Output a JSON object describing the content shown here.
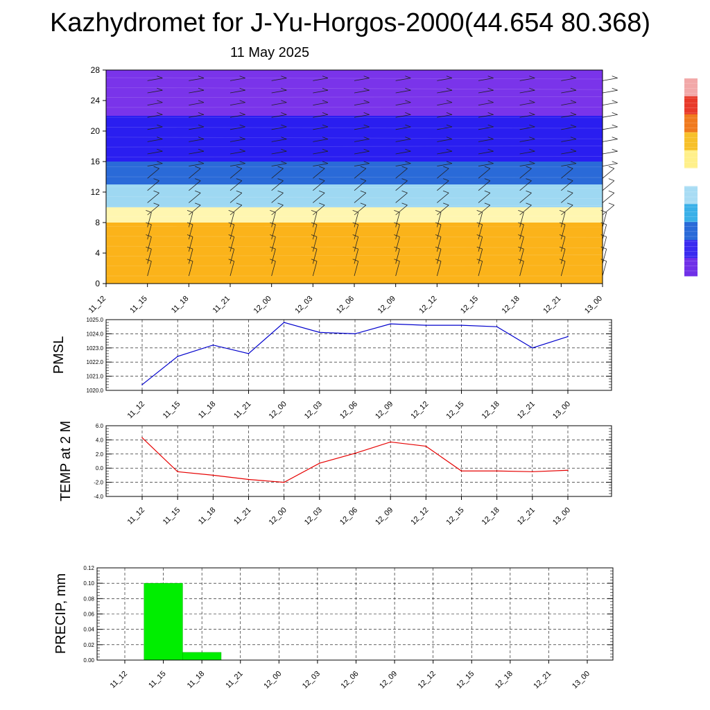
{
  "title": "Kazhydromet for J-Yu-Horgos-2000(44.654 80.368)",
  "subtitle": "11 May 2025",
  "time_labels": [
    "11_12",
    "11_15",
    "11_18",
    "11_21",
    "12_00",
    "12_03",
    "12_06",
    "12_09",
    "12_12",
    "12_15",
    "12_18",
    "12_21",
    "13_00"
  ],
  "colorbar": {
    "colors": [
      "#f2a8a8",
      "#e83a2a",
      "#f07a1e",
      "#f7c02a",
      "#fff08a",
      "#ffffff",
      "#a8dcf4",
      "#3ab0e8",
      "#2a6ad8",
      "#3a2af0",
      "#7030e8"
    ]
  },
  "chart_data": [
    {
      "type": "heatmap",
      "title": "",
      "ylim": [
        0,
        28
      ],
      "yticks": [
        0,
        4,
        8,
        12,
        16,
        20,
        24,
        28
      ],
      "categories": [
        "11_12",
        "11_15",
        "11_18",
        "11_21",
        "12_00",
        "12_03",
        "12_06",
        "12_09",
        "12_12",
        "12_15",
        "12_18",
        "12_21",
        "13_00"
      ],
      "bands": [
        {
          "from": 0,
          "to": 8,
          "color": "#fbb31a"
        },
        {
          "from": 8,
          "to": 10,
          "color": "#fff6b0"
        },
        {
          "from": 10,
          "to": 13,
          "color": "#9ed8f2"
        },
        {
          "from": 13,
          "to": 16,
          "color": "#2a6ad8"
        },
        {
          "from": 16,
          "to": 22,
          "color": "#2a1ef0"
        },
        {
          "from": 22,
          "to": 28,
          "color": "#7a34ea"
        }
      ],
      "note_wind_barbs": true
    },
    {
      "type": "line",
      "ylabel": "PMSL",
      "ylim": [
        1020.0,
        1025.0
      ],
      "yticks": [
        "1020.0",
        "1021.0",
        "1022.0",
        "1023.0",
        "1024.0",
        "1025.0"
      ],
      "categories": [
        "11_12",
        "11_15",
        "11_18",
        "11_21",
        "12_00",
        "12_03",
        "12_06",
        "12_09",
        "12_12",
        "12_15",
        "12_18",
        "12_21",
        "13_00"
      ],
      "values": [
        1020.4,
        1022.4,
        1023.2,
        1022.6,
        1024.8,
        1024.1,
        1024.0,
        1024.7,
        1024.6,
        1024.6,
        1024.5,
        1023.0,
        1023.8
      ],
      "color": "#0000cc",
      "grid": true
    },
    {
      "type": "line",
      "ylabel": "TEMP at 2 M",
      "ylim": [
        -4.0,
        6.0
      ],
      "yticks": [
        "-4.0",
        "-2.0",
        "0.0",
        "2.0",
        "4.0",
        "6.0"
      ],
      "categories": [
        "11_12",
        "11_15",
        "11_18",
        "11_21",
        "12_00",
        "12_03",
        "12_06",
        "12_09",
        "12_12",
        "12_15",
        "12_18",
        "12_21",
        "13_00"
      ],
      "values": [
        4.3,
        -0.5,
        -1.0,
        -1.6,
        -2.0,
        0.7,
        2.1,
        3.7,
        3.1,
        -0.4,
        -0.4,
        -0.5,
        -0.3
      ],
      "color": "#e60000",
      "grid": true
    },
    {
      "type": "bar",
      "ylabel": "PRECIP, mm",
      "ylim": [
        0,
        0.12
      ],
      "yticks": [
        "0.00",
        "0.02",
        "0.04",
        "0.06",
        "0.08",
        "0.10",
        "0.12"
      ],
      "categories": [
        "11_12",
        "11_15",
        "11_18",
        "11_21",
        "12_00",
        "12_03",
        "12_06",
        "12_09",
        "12_12",
        "12_15",
        "12_18",
        "12_21",
        "13_00"
      ],
      "values": [
        0,
        0.1,
        0.01,
        0,
        0,
        0,
        0,
        0,
        0,
        0,
        0,
        0,
        0
      ],
      "color": "#00ee00",
      "grid": true
    }
  ]
}
